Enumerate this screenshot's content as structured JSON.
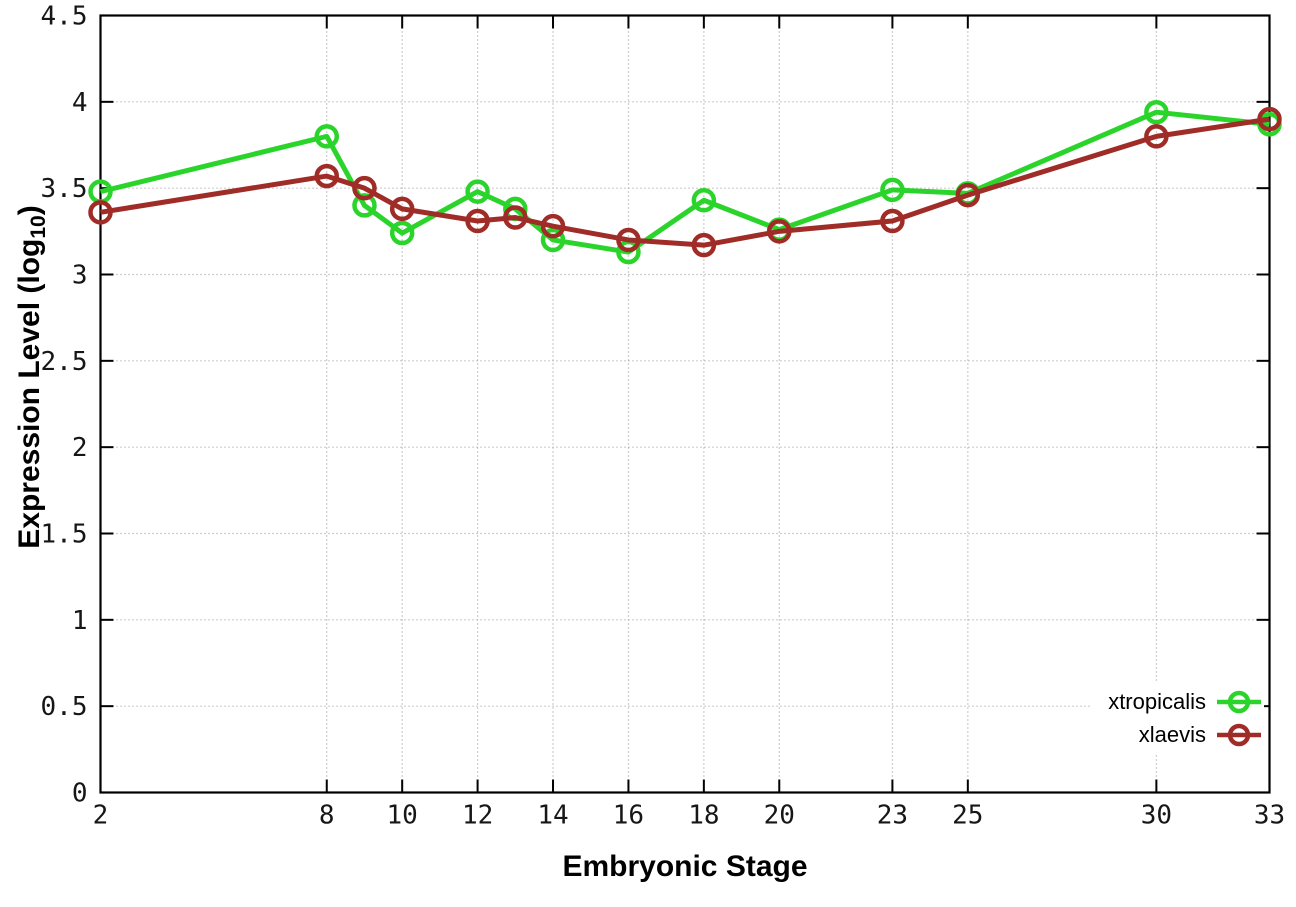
{
  "chart_data": {
    "type": "line",
    "title": "",
    "xlabel": "Embryonic Stage",
    "ylabel": "Expression Level (log10)",
    "ylabel_parts": {
      "main": "Expression Level (log",
      "sub": "10",
      "end": ")"
    },
    "x": [
      2,
      8,
      9,
      10,
      12,
      13,
      14,
      16,
      18,
      20,
      23,
      25,
      30,
      33
    ],
    "xticks": [
      2,
      8,
      10,
      12,
      14,
      16,
      18,
      20,
      23,
      25,
      30,
      33
    ],
    "yticks": [
      0,
      0.5,
      1,
      1.5,
      2,
      2.5,
      3,
      3.5,
      4,
      4.5
    ],
    "xlim": [
      2,
      33
    ],
    "ylim": [
      0,
      4.5
    ],
    "grid": true,
    "legend_position": "bottom-right-inside",
    "marker": "open-circle",
    "series": [
      {
        "name": "xtropicalis",
        "color": "#2bd42b",
        "values": [
          3.48,
          3.8,
          3.4,
          3.24,
          3.48,
          3.38,
          3.2,
          3.13,
          3.43,
          3.26,
          3.49,
          3.47,
          3.94,
          3.87
        ]
      },
      {
        "name": "xlaevis",
        "color": "#a02c28",
        "values": [
          3.36,
          3.57,
          3.5,
          3.38,
          3.31,
          3.33,
          3.28,
          3.2,
          3.17,
          3.25,
          3.31,
          3.46,
          3.8,
          3.9
        ]
      }
    ]
  }
}
